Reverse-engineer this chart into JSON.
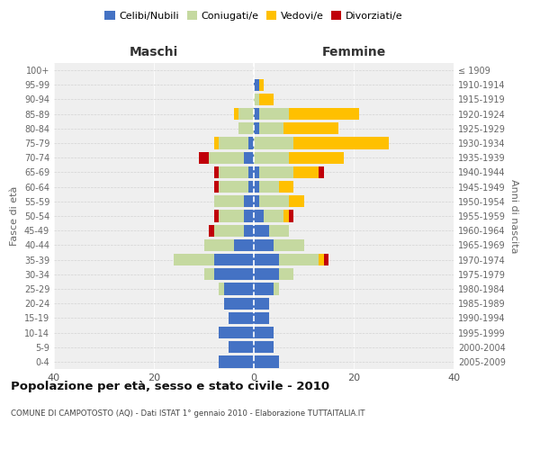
{
  "age_groups": [
    "0-4",
    "5-9",
    "10-14",
    "15-19",
    "20-24",
    "25-29",
    "30-34",
    "35-39",
    "40-44",
    "45-49",
    "50-54",
    "55-59",
    "60-64",
    "65-69",
    "70-74",
    "75-79",
    "80-84",
    "85-89",
    "90-94",
    "95-99",
    "100+"
  ],
  "birth_years": [
    "2005-2009",
    "2000-2004",
    "1995-1999",
    "1990-1994",
    "1985-1989",
    "1980-1984",
    "1975-1979",
    "1970-1974",
    "1965-1969",
    "1960-1964",
    "1955-1959",
    "1950-1954",
    "1945-1949",
    "1940-1944",
    "1935-1939",
    "1930-1934",
    "1925-1929",
    "1920-1924",
    "1915-1919",
    "1910-1914",
    "≤ 1909"
  ],
  "males": {
    "celibe": [
      7,
      5,
      7,
      5,
      6,
      6,
      8,
      8,
      4,
      2,
      2,
      2,
      1,
      1,
      2,
      1,
      0,
      0,
      0,
      0,
      0
    ],
    "coniugato": [
      0,
      0,
      0,
      0,
      0,
      1,
      2,
      8,
      6,
      6,
      5,
      6,
      6,
      6,
      7,
      6,
      3,
      3,
      0,
      0,
      0
    ],
    "vedovo": [
      0,
      0,
      0,
      0,
      0,
      0,
      0,
      0,
      0,
      0,
      0,
      0,
      0,
      0,
      0,
      1,
      0,
      1,
      0,
      0,
      0
    ],
    "divorziato": [
      0,
      0,
      0,
      0,
      0,
      0,
      0,
      0,
      0,
      1,
      1,
      0,
      1,
      1,
      2,
      0,
      0,
      0,
      0,
      0,
      0
    ]
  },
  "females": {
    "nubile": [
      5,
      4,
      4,
      3,
      3,
      4,
      5,
      5,
      4,
      3,
      2,
      1,
      1,
      1,
      0,
      0,
      1,
      1,
      0,
      1,
      0
    ],
    "coniugata": [
      0,
      0,
      0,
      0,
      0,
      1,
      3,
      8,
      6,
      4,
      4,
      6,
      4,
      7,
      7,
      8,
      5,
      6,
      1,
      0,
      0
    ],
    "vedova": [
      0,
      0,
      0,
      0,
      0,
      0,
      0,
      1,
      0,
      0,
      1,
      3,
      3,
      5,
      11,
      19,
      11,
      14,
      3,
      1,
      0
    ],
    "divorziata": [
      0,
      0,
      0,
      0,
      0,
      0,
      0,
      1,
      0,
      0,
      1,
      0,
      0,
      1,
      0,
      0,
      0,
      0,
      0,
      0,
      0
    ]
  },
  "color_celibe": "#4472c4",
  "color_coniugato": "#c5d9a0",
  "color_vedovo": "#ffc000",
  "color_divorziato": "#c0000a",
  "title": "Popolazione per età, sesso e stato civile - 2010",
  "subtitle": "COMUNE DI CAMPOTOSTO (AQ) - Dati ISTAT 1° gennaio 2010 - Elaborazione TUTTAITALIA.IT",
  "xlabel_left": "Maschi",
  "xlabel_right": "Femmine",
  "ylabel_left": "Fasce di età",
  "ylabel_right": "Anni di nascita",
  "xlim": 40,
  "background_color": "#ffffff",
  "grid_color": "#cccccc",
  "legend_labels": [
    "Celibi/Nubili",
    "Coniugati/e",
    "Vedovi/e",
    "Divorziati/e"
  ]
}
